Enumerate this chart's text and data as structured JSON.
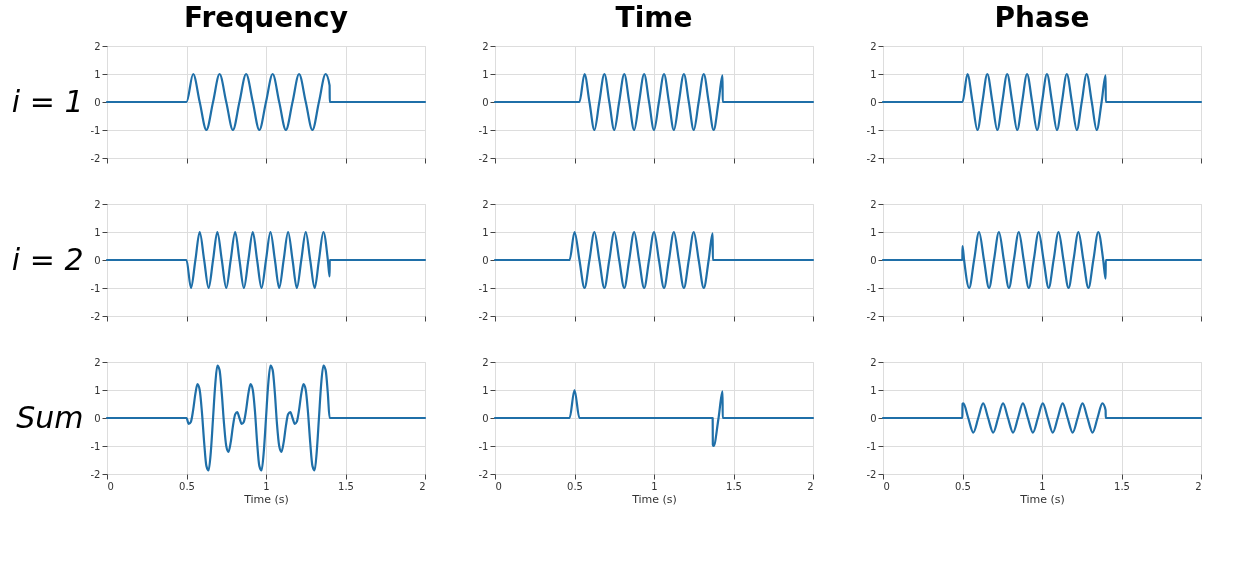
{
  "chart_data": [
    {
      "type": "line",
      "title": "Frequency",
      "ylabel": "i = 1",
      "xlim": [
        0,
        2
      ],
      "xticks": [
        0,
        0.5,
        1,
        1.5,
        2
      ],
      "ylim": [
        -2,
        2
      ],
      "yticks": [
        -2,
        -1,
        0,
        1,
        2
      ],
      "grid": true,
      "tick_labels": "y",
      "series": [
        {
          "color": "#1f6fa8",
          "x": [
            0,
            0.5,
            0.542,
            0.583,
            0.625,
            0.667,
            0.708,
            0.75,
            0.792,
            0.833,
            0.875,
            0.917,
            0.958,
            1.0,
            1.042,
            1.083,
            1.125,
            1.167,
            1.208,
            1.25,
            1.292,
            1.333,
            1.375,
            1.4,
            1.401,
            2
          ],
          "values": [
            0,
            0,
            1,
            0,
            -1,
            0,
            1,
            0,
            -1,
            0,
            1,
            0,
            -1,
            0,
            1,
            0,
            -1,
            0,
            1,
            0,
            -1,
            0,
            1,
            0.59,
            0,
            0
          ]
        }
      ]
    },
    {
      "type": "line",
      "title": "Time",
      "xlim": [
        0,
        2
      ],
      "xticks": [
        0,
        0.5,
        1,
        1.5,
        2
      ],
      "ylim": [
        -2,
        2
      ],
      "yticks": [
        -2,
        -1,
        0,
        1,
        2
      ],
      "grid": true,
      "tick_labels": "y",
      "series": [
        {
          "color": "#1f6fa8",
          "x": [
            0,
            0.531,
            0.563,
            0.594,
            0.625,
            0.656,
            0.688,
            0.719,
            0.75,
            0.781,
            0.813,
            0.844,
            0.875,
            0.906,
            0.938,
            0.969,
            1.0,
            1.031,
            1.063,
            1.094,
            1.125,
            1.156,
            1.188,
            1.219,
            1.25,
            1.281,
            1.313,
            1.344,
            1.375,
            1.406,
            1.431,
            1.432,
            2
          ],
          "values": [
            0,
            0,
            1,
            0,
            -1,
            0,
            1,
            0,
            -1,
            0,
            1,
            0,
            -1,
            0,
            1,
            0,
            -1,
            0,
            1,
            0,
            -1,
            0,
            1,
            0,
            -1,
            0,
            1,
            0,
            -1,
            0,
            0.95,
            0,
            0
          ]
        }
      ]
    },
    {
      "type": "line",
      "title": "Phase",
      "xlim": [
        0,
        2
      ],
      "xticks": [
        0,
        0.5,
        1,
        1.5,
        2
      ],
      "ylim": [
        -2,
        2
      ],
      "yticks": [
        -2,
        -1,
        0,
        1,
        2
      ],
      "grid": true,
      "tick_labels": "y",
      "series": [
        {
          "color": "#1f6fa8",
          "x": [
            0,
            0.5,
            0.531,
            0.563,
            0.594,
            0.625,
            0.656,
            0.688,
            0.719,
            0.75,
            0.781,
            0.813,
            0.844,
            0.875,
            0.906,
            0.938,
            0.969,
            1.0,
            1.031,
            1.063,
            1.094,
            1.125,
            1.156,
            1.188,
            1.219,
            1.25,
            1.281,
            1.313,
            1.344,
            1.375,
            1.4,
            1.401,
            2
          ],
          "values": [
            0,
            0,
            1,
            0,
            -1,
            0,
            1,
            0,
            -1,
            0,
            1,
            0,
            -1,
            0,
            1,
            0,
            -1,
            0,
            1,
            0,
            -1,
            0,
            1,
            0,
            -1,
            0,
            1,
            0,
            -1,
            0,
            0.95,
            0,
            0
          ]
        }
      ]
    },
    {
      "type": "line",
      "ylabel": "i = 2",
      "xlim": [
        0,
        2
      ],
      "xticks": [
        0,
        0.5,
        1,
        1.5,
        2
      ],
      "ylim": [
        -2,
        2
      ],
      "yticks": [
        -2,
        -1,
        0,
        1,
        2
      ],
      "grid": true,
      "tick_labels": "y",
      "series": [
        {
          "color": "#1f6fa8",
          "x": [
            0,
            0.5,
            0.528,
            0.556,
            0.583,
            0.611,
            0.639,
            0.667,
            0.694,
            0.722,
            0.75,
            0.778,
            0.806,
            0.833,
            0.861,
            0.889,
            0.917,
            0.944,
            0.972,
            1.0,
            1.028,
            1.056,
            1.083,
            1.111,
            1.139,
            1.167,
            1.194,
            1.222,
            1.25,
            1.278,
            1.306,
            1.333,
            1.361,
            1.389,
            1.4,
            1.401,
            2
          ],
          "values": [
            0,
            0,
            -1,
            0,
            1,
            0,
            -1,
            0,
            1,
            0,
            -1,
            0,
            1,
            0,
            -1,
            0,
            1,
            0,
            -1,
            0,
            1,
            0,
            -1,
            0,
            1,
            0,
            -1,
            0,
            1,
            0,
            -1,
            0,
            1,
            0,
            -0.59,
            0,
            0
          ]
        }
      ]
    },
    {
      "type": "line",
      "xlim": [
        0,
        2
      ],
      "xticks": [
        0,
        0.5,
        1,
        1.5,
        2
      ],
      "ylim": [
        -2,
        2
      ],
      "yticks": [
        -2,
        -1,
        0,
        1,
        2
      ],
      "grid": true,
      "tick_labels": "y",
      "series": [
        {
          "color": "#1f6fa8",
          "x": [
            0,
            0.469,
            0.5,
            0.531,
            0.563,
            0.594,
            0.625,
            0.656,
            0.688,
            0.719,
            0.75,
            0.781,
            0.813,
            0.844,
            0.875,
            0.906,
            0.938,
            0.969,
            1.0,
            1.031,
            1.063,
            1.094,
            1.125,
            1.156,
            1.188,
            1.219,
            1.25,
            1.281,
            1.313,
            1.344,
            1.369,
            1.37,
            2
          ],
          "values": [
            0,
            0,
            1,
            0,
            -1,
            0,
            1,
            0,
            -1,
            0,
            1,
            0,
            -1,
            0,
            1,
            0,
            -1,
            0,
            1,
            0,
            -1,
            0,
            1,
            0,
            -1,
            0,
            1,
            0,
            -1,
            0,
            0.95,
            0,
            0
          ]
        }
      ]
    },
    {
      "type": "line",
      "xlim": [
        0,
        2
      ],
      "xticks": [
        0,
        0.5,
        1,
        1.5,
        2
      ],
      "ylim": [
        -2,
        2
      ],
      "yticks": [
        -2,
        -1,
        0,
        1,
        2
      ],
      "grid": true,
      "tick_labels": "y",
      "series": [
        {
          "color": "#1f6fa8",
          "x": [
            0,
            0.499,
            0.5,
            0.51,
            0.542,
            0.573,
            0.604,
            0.635,
            0.667,
            0.698,
            0.729,
            0.76,
            0.792,
            0.823,
            0.854,
            0.885,
            0.917,
            0.948,
            0.979,
            1.01,
            1.042,
            1.073,
            1.104,
            1.135,
            1.167,
            1.198,
            1.229,
            1.26,
            1.292,
            1.323,
            1.354,
            1.385,
            1.4,
            1.401,
            2
          ],
          "values": [
            0,
            0,
            0.5,
            0,
            -1,
            0,
            1,
            0,
            -1,
            0,
            1,
            0,
            -1,
            0,
            1,
            0,
            -1,
            0,
            1,
            0,
            -1,
            0,
            1,
            0,
            -1,
            0,
            1,
            0,
            -1,
            0,
            1,
            0,
            -0.67,
            0,
            0
          ]
        }
      ]
    },
    {
      "type": "line",
      "ylabel": "Sum",
      "xlabel": "Time (s)",
      "xlim": [
        0,
        2
      ],
      "xticks": [
        0,
        0.5,
        1,
        1.5,
        2
      ],
      "ylim": [
        -2,
        2
      ],
      "yticks": [
        -2,
        -1,
        0,
        1,
        2
      ],
      "grid": true,
      "series": [
        {
          "color": "#1f6fa8",
          "x": [
            0,
            0.5,
            0.514,
            0.528,
            0.542,
            0.556,
            0.569,
            0.583,
            0.597,
            0.611,
            0.625,
            0.639,
            0.653,
            0.667,
            0.681,
            0.694,
            0.708,
            0.722,
            0.736,
            0.75,
            0.764,
            0.778,
            0.792,
            0.806,
            0.819,
            0.833,
            0.847,
            0.861,
            0.875,
            0.889,
            0.903,
            0.917,
            0.931,
            0.944,
            0.958,
            0.972,
            0.986,
            1.0,
            1.014,
            1.028,
            1.042,
            1.056,
            1.069,
            1.083,
            1.097,
            1.111,
            1.125,
            1.139,
            1.153,
            1.167,
            1.181,
            1.194,
            1.208,
            1.222,
            1.236,
            1.25,
            1.264,
            1.278,
            1.292,
            1.306,
            1.319,
            1.333,
            1.347,
            1.361,
            1.375,
            1.389,
            1.4,
            2
          ],
          "values": [
            0,
            0,
            -0.21,
            -0.13,
            0.29,
            0.87,
            1.21,
            1,
            0.21,
            -0.87,
            -1.71,
            -1.87,
            -1.21,
            0,
            1.21,
            1.87,
            1.71,
            0.87,
            -0.21,
            -1,
            -1.21,
            -0.87,
            -0.29,
            0.13,
            0.21,
            0,
            -0.21,
            -0.13,
            0.29,
            0.87,
            1.21,
            1,
            0.21,
            -0.87,
            -1.71,
            -1.87,
            -1.21,
            0,
            1.21,
            1.87,
            1.71,
            0.87,
            -0.21,
            -1,
            -1.21,
            -0.87,
            -0.29,
            0.13,
            0.21,
            0,
            -0.21,
            -0.13,
            0.29,
            0.87,
            1.21,
            1,
            0.21,
            -0.87,
            -1.71,
            -1.87,
            -1.21,
            0,
            1.21,
            1.87,
            1.71,
            0.87,
            0,
            0
          ]
        }
      ]
    },
    {
      "type": "line",
      "xlabel": "Time (s)",
      "xlim": [
        0,
        2
      ],
      "xticks": [
        0,
        0.5,
        1,
        1.5,
        2
      ],
      "ylim": [
        -2,
        2
      ],
      "yticks": [
        -2,
        -1,
        0,
        1,
        2
      ],
      "grid": true,
      "series": [
        {
          "color": "#1f6fa8",
          "x": [
            0,
            0.469,
            0.5,
            0.531,
            1.369,
            1.37,
            1.375,
            1.406,
            1.431,
            1.432,
            2
          ],
          "values": [
            0,
            0,
            1,
            0,
            0,
            -0.95,
            -1,
            0,
            0.95,
            0,
            0
          ]
        }
      ]
    },
    {
      "type": "line",
      "xlabel": "Time (s)",
      "xlim": [
        0,
        2
      ],
      "xticks": [
        0,
        0.5,
        1,
        1.5,
        2
      ],
      "ylim": [
        -2,
        2
      ],
      "yticks": [
        -2,
        -1,
        0,
        1,
        2
      ],
      "grid": true,
      "series": [
        {
          "color": "#1f6fa8",
          "x": [
            0,
            0.499,
            0.5,
            0.505,
            0.536,
            0.568,
            0.599,
            0.63,
            0.661,
            0.693,
            0.724,
            0.755,
            0.786,
            0.818,
            0.849,
            0.88,
            0.911,
            0.943,
            0.974,
            1.005,
            1.036,
            1.068,
            1.099,
            1.13,
            1.161,
            1.193,
            1.224,
            1.255,
            1.286,
            1.318,
            1.349,
            1.38,
            1.4,
            1.401,
            2
          ],
          "values": [
            0,
            0,
            0.5,
            0.52,
            0,
            -0.52,
            0,
            0.52,
            0,
            -0.52,
            0,
            0.52,
            0,
            -0.52,
            0,
            0.52,
            0,
            -0.52,
            0,
            0.52,
            0,
            -0.52,
            0,
            0.52,
            0,
            -0.52,
            0,
            0.52,
            0,
            -0.52,
            0,
            0.52,
            0.28,
            0,
            0
          ]
        }
      ]
    }
  ]
}
